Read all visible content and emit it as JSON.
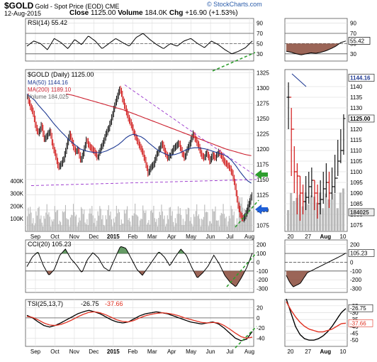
{
  "header": {
    "symbol": "$GOLD",
    "name": "Gold - Spot Price (EOD)",
    "exchange": "CME",
    "date": "12-Aug-2015",
    "close_label": "Close",
    "close_value": "1125.00",
    "volume_label": "Volume",
    "volume_value": "184.0K",
    "chg_label": "Chg",
    "chg_value": "+16.90 (+1.53%)",
    "brand": "© StockCharts.com"
  },
  "colors": {
    "price_bar_up": "#000000",
    "price_bar_down": "#cc0000",
    "ma50": "#1f3a93",
    "ma200": "#cc1f2e",
    "volume": "#b8b8b8",
    "indicator_fill": "#8a4a3a",
    "overbought_fill": "#4a8a4a",
    "trendline": "#9933cc",
    "annotation": "#2e9e2e",
    "marker_green": "#2e9e2e",
    "marker_blue": "#1f5fd6",
    "tsi_signal": "#e03020"
  },
  "chart_data": [
    {
      "type": "line",
      "panel": "rsi-main",
      "legend": "RSI(14) 55.42",
      "y_ticks": [
        30,
        50,
        70,
        90
      ],
      "overbought": 70,
      "oversold": 30,
      "current": 55.42,
      "series": [
        {
          "values": [
            45,
            55,
            50,
            38,
            60,
            52,
            40,
            58,
            48,
            65,
            55,
            40,
            50,
            60,
            52,
            45,
            62,
            70,
            58,
            48,
            40,
            50,
            45,
            55,
            60,
            50,
            42,
            55,
            48,
            38,
            30,
            35,
            42,
            55
          ]
        }
      ]
    },
    {
      "type": "ohlc",
      "panel": "price-main",
      "legend_price": "$GOLD (Daily) 1125.00",
      "legend_ma50": "MA(50) 1144.16",
      "legend_ma200": "MA(200) 1189.10",
      "legend_volume": "Volume 184,025",
      "x_ticks": [
        "Sep",
        "Oct",
        "Nov",
        "Dec",
        "2015",
        "Feb",
        "Mar",
        "Apr",
        "May",
        "Jun",
        "Jul",
        "Aug"
      ],
      "x_tick_dates": [
        "2014-09",
        "2014-10",
        "2014-11",
        "2014-12",
        "2015-01",
        "2015-02",
        "2015-03",
        "2015-04",
        "2015-05",
        "2015-06",
        "2015-07",
        "2015-08"
      ],
      "y_ticks": [
        1075,
        1100,
        1125,
        1150,
        1175,
        1200,
        1225,
        1250,
        1275,
        1300,
        1325
      ],
      "ylim": [
        1065,
        1330
      ],
      "volume_ticks": [
        "100K",
        "200K",
        "300K",
        "400K"
      ],
      "volume_ylim": [
        0,
        450000
      ],
      "markers": [
        {
          "type": "arrow-left",
          "color": "green",
          "y": 1158
        },
        {
          "type": "arrow-left",
          "color": "blue",
          "y": 1101
        }
      ],
      "price_tag": "1125.00",
      "close": [
        1285,
        1270,
        1260,
        1235,
        1225,
        1240,
        1215,
        1222,
        1230,
        1205,
        1190,
        1170,
        1175,
        1185,
        1205,
        1225,
        1210,
        1195,
        1200,
        1180,
        1195,
        1215,
        1205,
        1200,
        1195,
        1185,
        1200,
        1210,
        1225,
        1235,
        1250,
        1270,
        1285,
        1300,
        1280,
        1265,
        1250,
        1240,
        1225,
        1215,
        1205,
        1195,
        1180,
        1160,
        1170,
        1175,
        1190,
        1200,
        1210,
        1195,
        1185,
        1190,
        1200,
        1205,
        1210,
        1195,
        1185,
        1200,
        1210,
        1225,
        1215,
        1205,
        1190,
        1185,
        1195,
        1180,
        1190,
        1185,
        1195,
        1190,
        1180,
        1175,
        1170,
        1160,
        1140,
        1110,
        1090,
        1085,
        1095,
        1110,
        1125
      ],
      "ma50": [
        1290,
        1285,
        1280,
        1272,
        1265,
        1258,
        1250,
        1242,
        1235,
        1228,
        1222,
        1215,
        1210,
        1205,
        1200,
        1198,
        1196,
        1195,
        1194,
        1194,
        1195,
        1197,
        1200,
        1203,
        1207,
        1212,
        1218,
        1222,
        1224,
        1222,
        1220,
        1216,
        1210,
        1205,
        1200,
        1196,
        1193,
        1190,
        1190,
        1191,
        1193,
        1196,
        1199,
        1201,
        1202,
        1202,
        1201,
        1200,
        1198,
        1196,
        1194,
        1192,
        1190,
        1186,
        1180,
        1172,
        1163,
        1155,
        1148,
        1144
      ],
      "ma200": [
        1290,
        1288,
        1285,
        1282,
        1279,
        1276,
        1273,
        1270,
        1267,
        1264,
        1260,
        1256,
        1252,
        1248,
        1244,
        1240,
        1236,
        1232,
        1228,
        1224,
        1220,
        1216,
        1212,
        1208,
        1204,
        1200,
        1197,
        1194,
        1191,
        1189
      ]
    },
    {
      "type": "line",
      "panel": "cci-main",
      "legend": "CCI(20) 105.23",
      "y_ticks": [
        -300,
        -200,
        -100,
        0,
        100,
        200
      ],
      "current": 105.23,
      "series": [
        {
          "values": [
            -50,
            60,
            120,
            -40,
            -150,
            -80,
            80,
            150,
            40,
            -30,
            -120,
            30,
            110,
            50,
            -60,
            -100,
            40,
            180,
            160,
            40,
            -80,
            -150,
            -60,
            30,
            120,
            60,
            -40,
            60,
            150,
            80,
            -60,
            -180,
            -120,
            -40,
            80,
            -20,
            -150,
            -230,
            -280,
            -180,
            -60,
            105
          ]
        }
      ]
    },
    {
      "type": "line",
      "panel": "tsi-main",
      "legend_tsi": "TSI(25,13,7)",
      "legend_tsi_value": "-26.75",
      "legend_signal_value": "-37.66",
      "y_ticks": [
        -40,
        -20,
        0,
        20
      ],
      "series": [
        {
          "values": [
            5,
            0,
            -8,
            -15,
            -18,
            -15,
            -10,
            -4,
            2,
            8,
            12,
            15,
            12,
            8,
            2,
            -4,
            -8,
            -10,
            -8,
            -2,
            4,
            8,
            10,
            12,
            10,
            8,
            4,
            0,
            -4,
            -8,
            -10,
            -12,
            -10,
            -8,
            -12,
            -20,
            -30,
            -40,
            -45,
            -42,
            -27
          ]
        },
        {
          "values": [
            3,
            1,
            -4,
            -10,
            -14,
            -15,
            -13,
            -9,
            -4,
            2,
            7,
            11,
            12,
            10,
            6,
            1,
            -4,
            -7,
            -8,
            -5,
            0,
            4,
            7,
            9,
            10,
            9,
            7,
            4,
            0,
            -3,
            -6,
            -9,
            -10,
            -9,
            -10,
            -15,
            -22,
            -30,
            -37,
            -40,
            -38
          ]
        }
      ]
    },
    {
      "type": "line",
      "panel": "rsi-zoom",
      "y_ticks": [
        30,
        50,
        70,
        90
      ],
      "value_tag": "55.42",
      "series": [
        {
          "values": [
            35,
            33,
            30,
            28,
            30,
            32,
            31,
            33,
            36,
            40,
            45,
            52,
            55
          ]
        }
      ]
    },
    {
      "type": "ohlc",
      "panel": "price-zoom",
      "x_ticks": [
        "20",
        "27",
        "Aug",
        "10"
      ],
      "y_ticks": [
        1075,
        1080,
        1085,
        1090,
        1095,
        1100,
        1105,
        1110,
        1115,
        1120,
        1125,
        1130,
        1135,
        1140
      ],
      "ylim": [
        1072,
        1148
      ],
      "volume_tag": "184025",
      "ma50_tag": "1144.16",
      "price_tag": "1125.00",
      "close": [
        1135,
        1120,
        1100,
        1098,
        1090,
        1086,
        1088,
        1093,
        1096,
        1090,
        1085,
        1087,
        1092,
        1095,
        1090,
        1093,
        1097,
        1105,
        1110,
        1125
      ],
      "high": [
        1142,
        1130,
        1112,
        1104,
        1098,
        1094,
        1098,
        1100,
        1102,
        1096,
        1094,
        1096,
        1100,
        1104,
        1100,
        1102,
        1108,
        1115,
        1120,
        1127
      ],
      "low": [
        1120,
        1098,
        1090,
        1080,
        1077,
        1080,
        1082,
        1085,
        1088,
        1082,
        1078,
        1080,
        1085,
        1088,
        1083,
        1087,
        1090,
        1098,
        1104,
        1108
      ]
    },
    {
      "type": "line",
      "panel": "cci-zoom",
      "y_ticks": [
        -300,
        -200,
        -100,
        0,
        100,
        200
      ],
      "value_tag": "105.23",
      "series": [
        {
          "values": [
            -150,
            -230,
            -280,
            -260,
            -240,
            -180,
            -120,
            -100,
            -80,
            -60,
            -40,
            -20,
            0,
            20,
            40,
            60,
            80,
            105
          ]
        }
      ]
    },
    {
      "type": "line",
      "panel": "tsi-zoom",
      "x_ticks": [
        "20",
        "27",
        "Aug",
        "10"
      ],
      "y_ticks": [
        -50,
        -45,
        -40,
        -35,
        -30,
        -25
      ],
      "value_tags": [
        "-26.75",
        "-37.66"
      ],
      "series": [
        {
          "values": [
            -20,
            -30,
            -40,
            -46,
            -49,
            -50,
            -50,
            -49,
            -47,
            -44,
            -40,
            -35,
            -30,
            -27
          ]
        },
        {
          "values": [
            -22,
            -28,
            -33,
            -37,
            -40,
            -42,
            -43,
            -44,
            -44,
            -43,
            -42,
            -40,
            -38,
            -37.66
          ]
        }
      ]
    }
  ]
}
